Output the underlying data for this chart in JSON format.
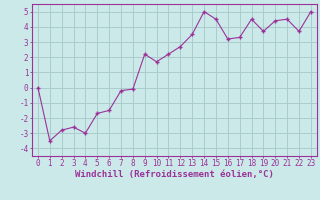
{
  "x": [
    0,
    1,
    2,
    3,
    4,
    5,
    6,
    7,
    8,
    9,
    10,
    11,
    12,
    13,
    14,
    15,
    16,
    17,
    18,
    19,
    20,
    21,
    22,
    23
  ],
  "y": [
    0.0,
    -3.5,
    -2.8,
    -2.6,
    -3.0,
    -1.7,
    -1.5,
    -0.2,
    -0.1,
    2.2,
    1.7,
    2.2,
    2.7,
    3.5,
    5.0,
    4.5,
    3.2,
    3.3,
    4.5,
    3.7,
    4.4,
    4.5,
    3.7,
    5.0
  ],
  "line_color": "#993399",
  "marker": "+",
  "marker_size": 3,
  "bg_color": "#cce9e9",
  "grid_color": "#aacccc",
  "xlabel": "Windchill (Refroidissement éolien,°C)",
  "xlabel_fontsize": 6.5,
  "tick_fontsize": 5.5,
  "ylim": [
    -4.5,
    5.5
  ],
  "xlim": [
    -0.5,
    23.5
  ],
  "yticks": [
    -4,
    -3,
    -2,
    -1,
    0,
    1,
    2,
    3,
    4,
    5
  ],
  "xticks": [
    0,
    1,
    2,
    3,
    4,
    5,
    6,
    7,
    8,
    9,
    10,
    11,
    12,
    13,
    14,
    15,
    16,
    17,
    18,
    19,
    20,
    21,
    22,
    23
  ]
}
